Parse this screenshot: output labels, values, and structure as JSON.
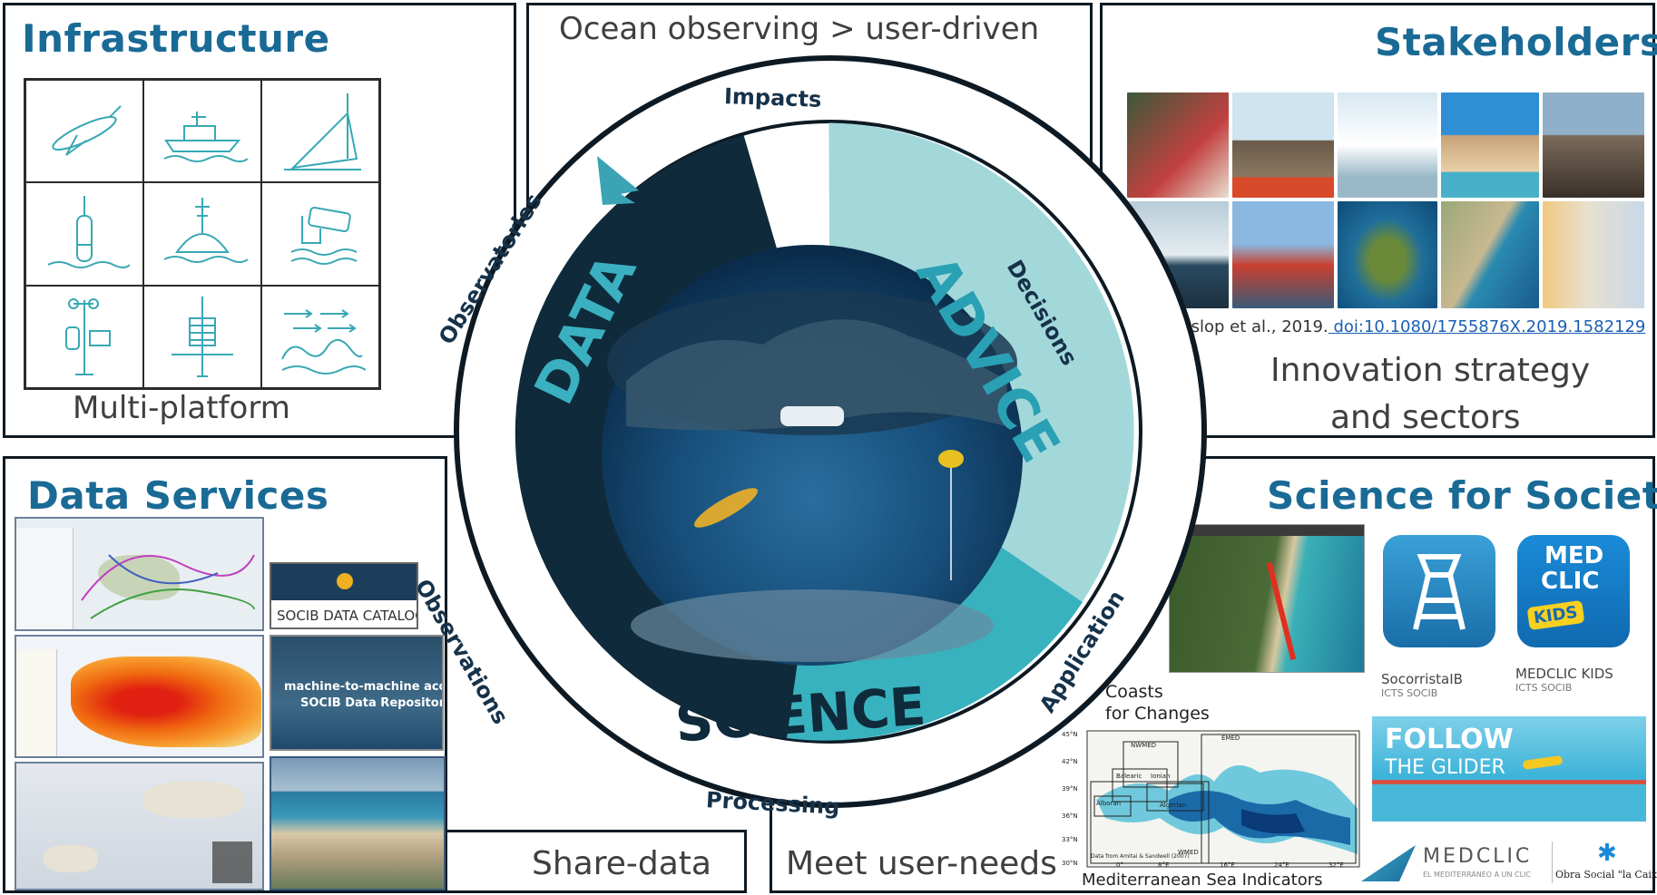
{
  "top_title": "Ocean observing > user-driven",
  "infrastructure": {
    "title": "Infrastructure",
    "caption": "Multi-platform",
    "icons": [
      "glider-icon",
      "vessel-icon",
      "hf-radar-icon",
      "profiler-icon",
      "buoy-icon",
      "camera-icon",
      "weather-station-icon",
      "mooring-icon",
      "currents-icon"
    ]
  },
  "stakeholders": {
    "title": "Stakeholders",
    "citation_prefix": "Heslop et al., 2019.",
    "citation_link": " doi:10.1080/1755876X.2019.1582129",
    "caption_line1": "Innovation strategy",
    "caption_line2": "and sectors"
  },
  "data_services": {
    "title": "Data Services",
    "catalog_label": "SOCIB DATA CATALOG",
    "m2m_line1": "machine-to-machine access to",
    "m2m_line2": "SOCIB Data Repository",
    "caption": "Share-data"
  },
  "science_society": {
    "title": "Science for Society",
    "coasts_line1": "Coasts",
    "coasts_line2": "for Changes",
    "app1_name": "SocorristaIB",
    "app1_org": "ICTS SOCIB",
    "app2_name": "MEDCLIC KIDS",
    "app2_org": "ICTS SOCIB",
    "app2_logo_line1": "MED",
    "app2_logo_line2": "CLIC",
    "app2_logo_kids": "KIDS",
    "follow_line1": "FOLLOW",
    "follow_line2": "THE GLIDER",
    "medclic_logo": "MEDCLIC",
    "medclic_tagline": "EL MEDITERRÀNEO A UN CLIC",
    "obra_social": "Obra Social \"la Caixa\"",
    "map_title": "Mediterranean Sea  Indicators",
    "map_regions": [
      "NWMED",
      "Balearic",
      "Ionian",
      "EMED",
      "Alboran",
      "Algerian",
      "WMED"
    ],
    "map_lat_ticks": [
      "45°N",
      "42°N",
      "39°N",
      "36°N",
      "33°N",
      "30°N"
    ],
    "map_lon_ticks": [
      "0°",
      "8°E",
      "16°E",
      "24°E",
      "32°E"
    ],
    "map_credit": "Data from Amitai & Sandwell (2007)",
    "caption": "Meet user-needs"
  },
  "cycle": {
    "sectors": [
      "DATA",
      "ADVICE",
      "SCIENCE"
    ],
    "ring_labels": [
      "Impacts",
      "Decisions",
      "Application",
      "Processing",
      "Observations",
      "Observatories"
    ],
    "colors": {
      "data": "#0f2a3a",
      "advice": "#a3d8da",
      "science": "#38b2be",
      "ring": "#ffffff",
      "outline": "#0d1a24"
    }
  }
}
